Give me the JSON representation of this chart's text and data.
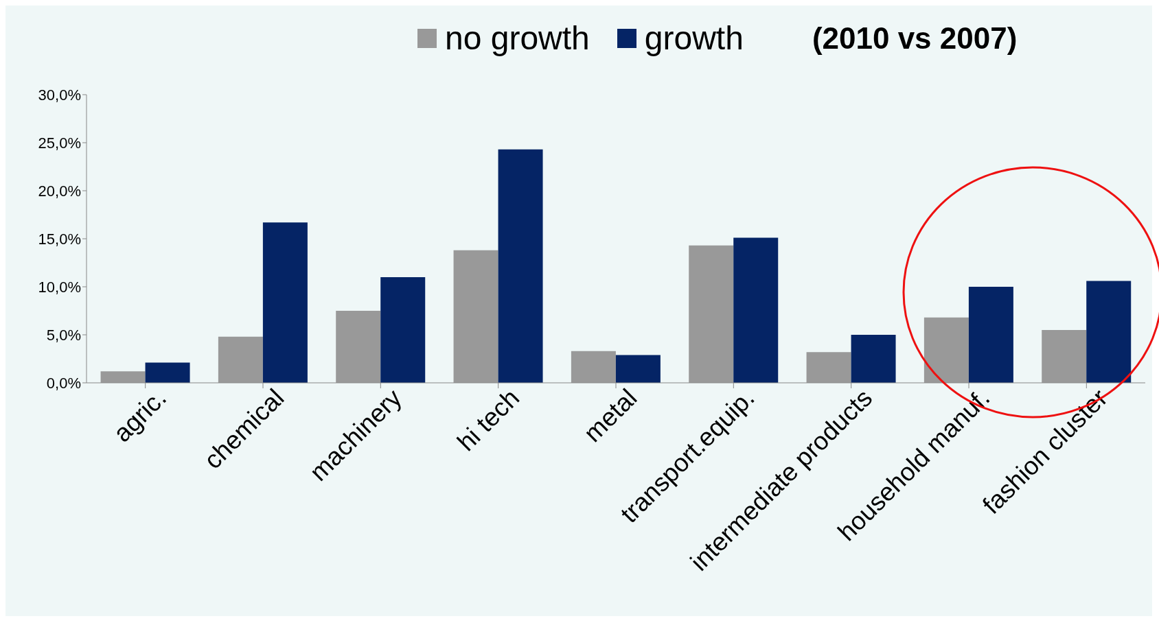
{
  "chart_data": {
    "type": "bar",
    "title": "(2010 vs 2007)",
    "categories": [
      "agric.",
      "chemical",
      "machinery",
      "hi tech",
      "metal",
      "transport.equip.",
      "intermediate products",
      "household manuf.",
      "fashion cluster"
    ],
    "series": [
      {
        "name": "no growth",
        "color": "#999999",
        "values": [
          1.2,
          4.8,
          7.5,
          13.8,
          3.3,
          14.3,
          3.2,
          6.8,
          5.5
        ]
      },
      {
        "name": "growth",
        "color": "#052465",
        "values": [
          2.1,
          16.7,
          11.0,
          24.3,
          2.9,
          15.1,
          5.0,
          10.0,
          10.6
        ]
      }
    ],
    "ylim": [
      0,
      30
    ],
    "yticks": [
      {
        "value": 0,
        "label": "0,0%"
      },
      {
        "value": 5,
        "label": "5,0%"
      },
      {
        "value": 10,
        "label": "10,0%"
      },
      {
        "value": 15,
        "label": "15,0%"
      },
      {
        "value": 20,
        "label": "20,0%"
      },
      {
        "value": 25,
        "label": "25,0%"
      },
      {
        "value": 30,
        "label": "30,0%"
      }
    ],
    "grid": false,
    "legend": "top"
  }
}
